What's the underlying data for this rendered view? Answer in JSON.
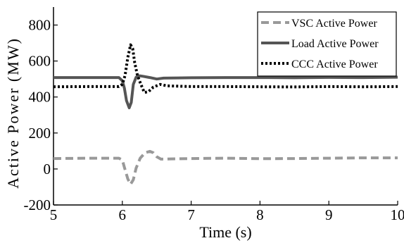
{
  "chart_data": {
    "type": "line",
    "title": "",
    "xlabel": "Time (s)",
    "ylabel": "Active Power (MW)",
    "xlim": [
      5,
      10
    ],
    "ylim": [
      -200,
      900
    ],
    "xticks": [
      "5",
      "6",
      "7",
      "8",
      "9",
      "10"
    ],
    "yticks": [
      "-200",
      "0",
      "200",
      "400",
      "600",
      "800"
    ],
    "grid": false,
    "legend_position": "top-right",
    "series": [
      {
        "name": "VSC Active Power",
        "color": "#999999",
        "dash": "dashed",
        "x": [
          5.0,
          5.5,
          5.95,
          6.0,
          6.03,
          6.08,
          6.12,
          6.16,
          6.2,
          6.26,
          6.33,
          6.4,
          6.45,
          6.5,
          6.56,
          6.62,
          6.7,
          7.0,
          7.5,
          8.0,
          8.5,
          9.0,
          9.5,
          10.0
        ],
        "y": [
          58,
          60,
          60,
          50,
          10,
          -55,
          -85,
          -60,
          5,
          60,
          90,
          98,
          90,
          68,
          55,
          55,
          56,
          58,
          60,
          57,
          58,
          60,
          62,
          62
        ]
      },
      {
        "name": "Load Active Power",
        "color": "#555555",
        "dash": "solid",
        "x": [
          5.0,
          5.5,
          5.95,
          6.0,
          6.03,
          6.06,
          6.1,
          6.13,
          6.16,
          6.2,
          6.25,
          6.3,
          6.4,
          6.5,
          6.6,
          7.0,
          7.5,
          8.0,
          8.5,
          9.0,
          9.5,
          10.0
        ],
        "y": [
          508,
          508,
          508,
          490,
          450,
          380,
          340,
          370,
          470,
          510,
          518,
          515,
          508,
          500,
          505,
          507,
          508,
          508,
          507,
          509,
          508,
          510
        ]
      },
      {
        "name": "CCC Active Power",
        "color": "#000000",
        "dash": "dotted",
        "x": [
          5.0,
          5.5,
          5.95,
          6.0,
          6.04,
          6.08,
          6.12,
          6.15,
          6.18,
          6.22,
          6.27,
          6.32,
          6.38,
          6.45,
          6.55,
          6.65,
          7.0,
          7.5,
          8.0,
          8.5,
          9.0,
          9.5,
          10.0
        ],
        "y": [
          457,
          458,
          458,
          470,
          520,
          620,
          690,
          670,
          590,
          520,
          470,
          425,
          430,
          455,
          470,
          462,
          458,
          458,
          457,
          456,
          458,
          457,
          458
        ]
      }
    ]
  }
}
